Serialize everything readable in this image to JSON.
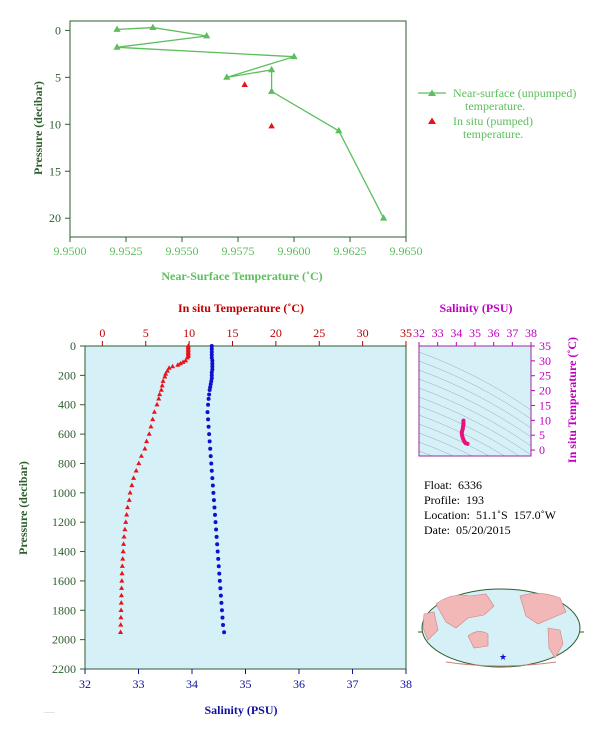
{
  "colors": {
    "near_surface": "#5cbf5c",
    "in_situ_temp": "#e8121a",
    "salinity": "#1010d0",
    "ts_curve": "#e8127a",
    "axis_green": "#2e5d2e",
    "axis_red": "#c00000",
    "axis_magenta": "#c000c0",
    "axis_blue": "#1010a0",
    "panel_bg": "#d6f0f8",
    "land": "#f2b8b8"
  },
  "chart_data": [
    {
      "type": "line",
      "xlabel": "Near-Surface Temperature (˚C)",
      "ylabel": "Pressure (decibar)",
      "xlim": [
        9.95,
        9.965
      ],
      "ylim": [
        22,
        -1
      ],
      "x_ticks": [
        "9.9500",
        "9.9525",
        "9.9550",
        "9.9575",
        "9.9600",
        "9.9625",
        "9.9650"
      ],
      "y_ticks": [
        "0",
        "5",
        "10",
        "15",
        "20"
      ],
      "series": [
        {
          "name": "Near-surface (unpumped) temperature.",
          "marker": "triangle-line",
          "points": [
            [
              9.9521,
              -0.1
            ],
            [
              9.9537,
              -0.3
            ],
            [
              9.9561,
              0.6
            ],
            [
              9.9521,
              1.8
            ],
            [
              9.96,
              2.8
            ],
            [
              9.957,
              5.0
            ],
            [
              9.959,
              4.2
            ],
            [
              9.959,
              6.5
            ],
            [
              9.962,
              10.7
            ],
            [
              9.964,
              20.0
            ]
          ]
        },
        {
          "name": "In situ (pumped) temperature.",
          "marker": "triangle",
          "points": [
            [
              9.9578,
              5.8
            ],
            [
              9.959,
              10.2
            ]
          ]
        }
      ],
      "legend_position": "right"
    },
    {
      "type": "scatter",
      "ylabel": "Pressure (decibar)",
      "top_axis_label": "In situ Temperature (˚C)",
      "bottom_axis_label": "Salinity (PSU)",
      "temperature_lim": [
        -2,
        35
      ],
      "salinity_lim": [
        32,
        38
      ],
      "ylim": [
        2200,
        0
      ],
      "temperature_ticks": [
        "0",
        "5",
        "10",
        "15",
        "20",
        "25",
        "30",
        "35"
      ],
      "salinity_ticks": [
        "32",
        "33",
        "34",
        "35",
        "36",
        "37",
        "38"
      ],
      "y_ticks": [
        "0",
        "200",
        "400",
        "600",
        "800",
        "1000",
        "1200",
        "1400",
        "1600",
        "1800",
        "2000",
        "2200"
      ],
      "temperature_profile": [
        [
          9.9,
          0
        ],
        [
          9.9,
          10
        ],
        [
          9.9,
          20
        ],
        [
          9.9,
          30
        ],
        [
          9.9,
          40
        ],
        [
          9.9,
          50
        ],
        [
          9.9,
          60
        ],
        [
          9.9,
          70
        ],
        [
          9.8,
          80
        ],
        [
          9.6,
          100
        ],
        [
          9.3,
          110
        ],
        [
          9.0,
          120
        ],
        [
          8.7,
          130
        ],
        [
          8.1,
          140
        ],
        [
          7.7,
          150
        ],
        [
          7.5,
          170
        ],
        [
          7.3,
          190
        ],
        [
          7.2,
          210
        ],
        [
          7.0,
          240
        ],
        [
          6.9,
          270
        ],
        [
          6.8,
          300
        ],
        [
          6.6,
          330
        ],
        [
          6.5,
          360
        ],
        [
          6.3,
          400
        ],
        [
          6.0,
          450
        ],
        [
          5.8,
          500
        ],
        [
          5.6,
          550
        ],
        [
          5.4,
          600
        ],
        [
          5.1,
          650
        ],
        [
          4.9,
          700
        ],
        [
          4.5,
          750
        ],
        [
          4.2,
          800
        ],
        [
          3.9,
          850
        ],
        [
          3.6,
          900
        ],
        [
          3.4,
          950
        ],
        [
          3.2,
          1000
        ],
        [
          3.1,
          1050
        ],
        [
          2.9,
          1100
        ],
        [
          2.8,
          1150
        ],
        [
          2.7,
          1200
        ],
        [
          2.6,
          1250
        ],
        [
          2.5,
          1300
        ],
        [
          2.45,
          1350
        ],
        [
          2.4,
          1400
        ],
        [
          2.35,
          1450
        ],
        [
          2.3,
          1500
        ],
        [
          2.27,
          1550
        ],
        [
          2.25,
          1600
        ],
        [
          2.22,
          1650
        ],
        [
          2.2,
          1700
        ],
        [
          2.18,
          1750
        ],
        [
          2.16,
          1800
        ],
        [
          2.14,
          1850
        ],
        [
          2.12,
          1900
        ],
        [
          2.1,
          1950
        ]
      ],
      "salinity_profile": [
        [
          34.37,
          0
        ],
        [
          34.37,
          20
        ],
        [
          34.37,
          40
        ],
        [
          34.37,
          60
        ],
        [
          34.37,
          80
        ],
        [
          34.38,
          100
        ],
        [
          34.38,
          120
        ],
        [
          34.38,
          140
        ],
        [
          34.38,
          160
        ],
        [
          34.37,
          180
        ],
        [
          34.37,
          200
        ],
        [
          34.37,
          220
        ],
        [
          34.36,
          240
        ],
        [
          34.35,
          260
        ],
        [
          34.34,
          280
        ],
        [
          34.33,
          300
        ],
        [
          34.32,
          330
        ],
        [
          34.31,
          360
        ],
        [
          34.3,
          400
        ],
        [
          34.29,
          450
        ],
        [
          34.3,
          500
        ],
        [
          34.31,
          550
        ],
        [
          34.32,
          600
        ],
        [
          34.33,
          650
        ],
        [
          34.34,
          700
        ],
        [
          34.35,
          750
        ],
        [
          34.36,
          800
        ],
        [
          34.37,
          850
        ],
        [
          34.38,
          900
        ],
        [
          34.39,
          950
        ],
        [
          34.4,
          1000
        ],
        [
          34.41,
          1050
        ],
        [
          34.42,
          1100
        ],
        [
          34.43,
          1150
        ],
        [
          34.44,
          1200
        ],
        [
          34.45,
          1250
        ],
        [
          34.46,
          1300
        ],
        [
          34.47,
          1350
        ],
        [
          34.48,
          1400
        ],
        [
          34.49,
          1450
        ],
        [
          34.5,
          1500
        ],
        [
          34.51,
          1550
        ],
        [
          34.52,
          1600
        ],
        [
          34.53,
          1650
        ],
        [
          34.54,
          1700
        ],
        [
          34.55,
          1750
        ],
        [
          34.56,
          1800
        ],
        [
          34.57,
          1850
        ],
        [
          34.58,
          1900
        ],
        [
          34.6,
          1950
        ]
      ],
      "grid": false,
      "background": "#d6f0f8"
    },
    {
      "type": "scatter",
      "top_axis_label": "Salinity (PSU)",
      "right_axis_label": "In situ Temperature (˚C)",
      "salinity_lim": [
        32,
        38
      ],
      "temperature_lim": [
        -2,
        35
      ],
      "salinity_ticks": [
        "32",
        "33",
        "34",
        "35",
        "36",
        "37",
        "38"
      ],
      "temperature_ticks": [
        "0",
        "5",
        "10",
        "15",
        "20",
        "25",
        "30",
        "35"
      ],
      "ts_points": [
        [
          34.38,
          9.9
        ],
        [
          34.38,
          9.5
        ],
        [
          34.38,
          8.8
        ],
        [
          34.36,
          7.8
        ],
        [
          34.34,
          7.0
        ],
        [
          34.31,
          6.4
        ],
        [
          34.29,
          5.8
        ],
        [
          34.3,
          5.2
        ],
        [
          34.32,
          4.6
        ],
        [
          34.35,
          4.0
        ],
        [
          34.38,
          3.5
        ],
        [
          34.42,
          3.0
        ],
        [
          34.46,
          2.6
        ],
        [
          34.5,
          2.3
        ],
        [
          34.55,
          2.2
        ],
        [
          34.6,
          2.1
        ]
      ]
    }
  ],
  "info": {
    "float": "Float:  6336",
    "profile": "Profile:  193",
    "location": "Location:  51.1˚S  157.0˚W",
    "date": "Date:  05/20/2015"
  },
  "map": {
    "marker": "float-location-star"
  }
}
